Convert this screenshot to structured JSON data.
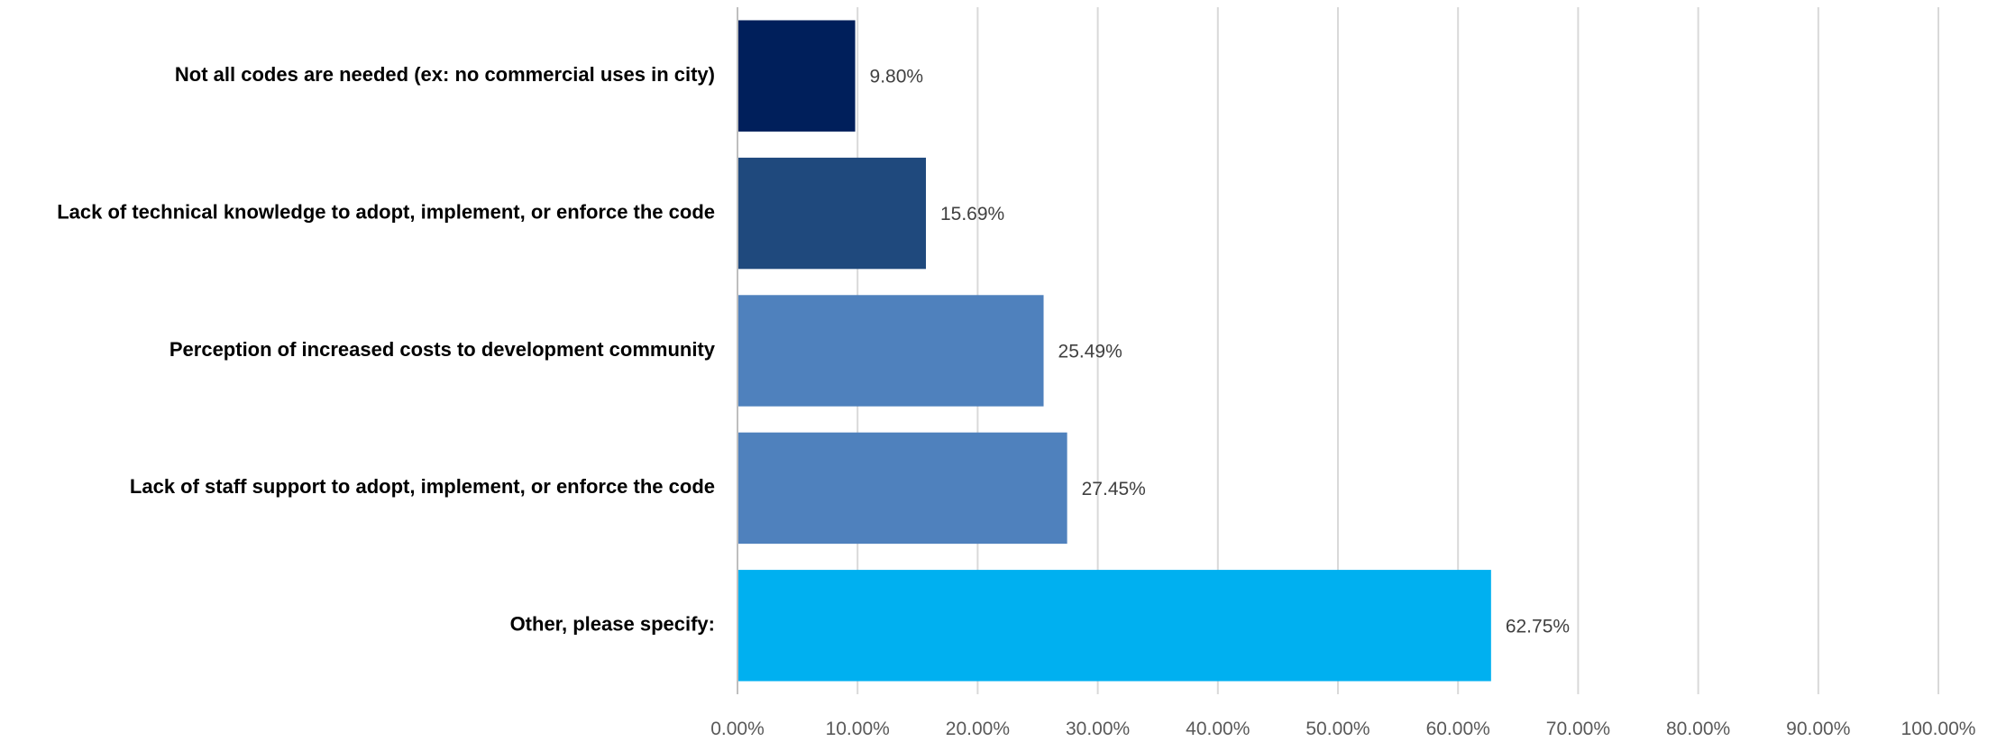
{
  "chart_data": {
    "type": "bar",
    "orientation": "horizontal",
    "categories": [
      "Not all codes are needed (ex: no commercial uses in city)",
      "Lack of technical knowledge to adopt, implement, or enforce the code",
      "Perception of increased costs to development community",
      "Lack of staff support to adopt, implement, or enforce the code",
      "Other, please specify:"
    ],
    "values": [
      9.8,
      15.69,
      25.49,
      27.45,
      62.75
    ],
    "value_labels": [
      "9.80%",
      "15.69%",
      "25.49%",
      "27.45%",
      "62.75%"
    ],
    "bar_colors": [
      "#001f5b",
      "#1f497d",
      "#4f81bd",
      "#4f81bd",
      "#00b0f0"
    ],
    "xlim": [
      0,
      100
    ],
    "x_ticks": [
      "0.00%",
      "10.00%",
      "20.00%",
      "30.00%",
      "40.00%",
      "50.00%",
      "60.00%",
      "70.00%",
      "80.00%",
      "90.00%",
      "100.00%"
    ],
    "grid": "vertical",
    "gridline_color": "#d9d9d9",
    "axis_color": "#bfbfbf",
    "legend": "none",
    "title": "",
    "xlabel": "",
    "ylabel": ""
  }
}
